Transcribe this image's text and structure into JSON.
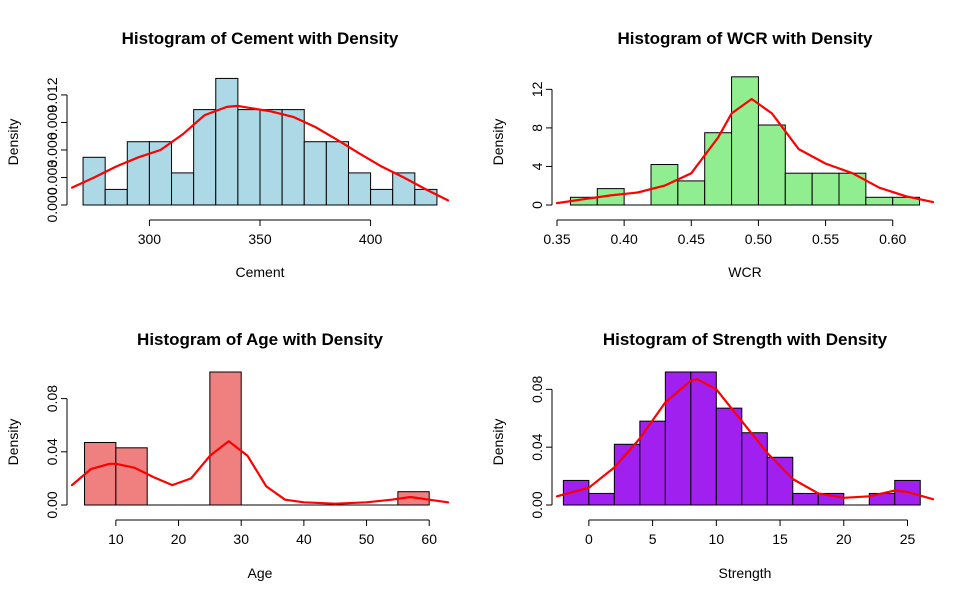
{
  "chart_data": [
    {
      "type": "bar",
      "title": "Histogram of Cement with Density",
      "xlabel": "Cement",
      "ylabel": "Density",
      "bin_edges": [
        270,
        280,
        290,
        300,
        310,
        320,
        330,
        340,
        350,
        360,
        370,
        380,
        390,
        400,
        410,
        420,
        430
      ],
      "values": [
        0.0052,
        0.0017,
        0.0069,
        0.0069,
        0.0035,
        0.0104,
        0.0138,
        0.0104,
        0.0104,
        0.0104,
        0.0069,
        0.0069,
        0.0035,
        0.0017,
        0.0035,
        0.0017
      ],
      "bar_color": "#ADD8E6",
      "density_curve": {
        "color": "#FF0000",
        "x": [
          265,
          275,
          285,
          295,
          305,
          315,
          325,
          335,
          340,
          345,
          355,
          365,
          375,
          385,
          395,
          405,
          415,
          425,
          435
        ],
        "y": [
          0.0019,
          0.003,
          0.0042,
          0.0052,
          0.006,
          0.0077,
          0.0098,
          0.0107,
          0.0108,
          0.0106,
          0.0102,
          0.0096,
          0.0085,
          0.0071,
          0.0056,
          0.0042,
          0.003,
          0.0017,
          0.0005
        ]
      },
      "xticks": [
        300,
        350,
        400
      ],
      "yticks": [
        "0.000",
        "0.003",
        "0.006",
        "0.009",
        "0.012"
      ],
      "xlim": [
        265,
        435
      ],
      "ylim": [
        0,
        0.0145
      ]
    },
    {
      "type": "bar",
      "title": "Histogram of WCR with Density",
      "xlabel": "WCR",
      "ylabel": "Density",
      "bin_edges": [
        0.36,
        0.38,
        0.4,
        0.42,
        0.44,
        0.46,
        0.48,
        0.5,
        0.52,
        0.54,
        0.56,
        0.58,
        0.6,
        0.62
      ],
      "values": [
        0.8,
        1.7,
        0.0,
        4.2,
        2.5,
        7.5,
        13.3,
        8.3,
        3.3,
        3.3,
        3.3,
        0.8,
        0.8
      ],
      "bar_color": "#90EE90",
      "density_curve": {
        "color": "#FF0000",
        "x": [
          0.35,
          0.37,
          0.39,
          0.41,
          0.43,
          0.45,
          0.47,
          0.48,
          0.495,
          0.51,
          0.53,
          0.55,
          0.57,
          0.59,
          0.61,
          0.63
        ],
        "y": [
          0.2,
          0.6,
          1.0,
          1.3,
          2.0,
          3.3,
          7.0,
          9.5,
          11.0,
          9.5,
          5.8,
          4.3,
          3.3,
          1.8,
          0.9,
          0.3
        ]
      },
      "xticks": [
        "0.35",
        "0.40",
        "0.45",
        "0.50",
        "0.55",
        "0.60"
      ],
      "yticks": [
        "0",
        "4",
        "8",
        "12"
      ],
      "xlim": [
        0.35,
        0.63
      ],
      "ylim": [
        0,
        13.8
      ]
    },
    {
      "type": "bar",
      "title": "Histogram of Age with Density",
      "xlabel": "Age",
      "ylabel": "Density",
      "bin_edges": [
        5,
        10,
        15,
        20,
        25,
        30,
        35,
        40,
        45,
        50,
        55,
        60
      ],
      "values": [
        0.047,
        0.043,
        0.0,
        0.0,
        0.1,
        0.0,
        0.0,
        0.0,
        0.0,
        0.0,
        0.01
      ],
      "bar_color": "#F08080",
      "density_curve": {
        "color": "#FF0000",
        "x": [
          3,
          6,
          9,
          10,
          13,
          16,
          19,
          22,
          25,
          28,
          31,
          34,
          37,
          40,
          45,
          50,
          54,
          57,
          60,
          63
        ],
        "y": [
          0.015,
          0.027,
          0.031,
          0.031,
          0.028,
          0.021,
          0.015,
          0.02,
          0.037,
          0.048,
          0.037,
          0.014,
          0.004,
          0.002,
          0.001,
          0.002,
          0.004,
          0.006,
          0.004,
          0.002
        ]
      },
      "xticks": [
        10,
        20,
        30,
        40,
        50,
        60
      ],
      "yticks": [
        "0.00",
        "0.04",
        "0.08"
      ],
      "xlim": [
        3,
        63
      ],
      "ylim": [
        0,
        0.1
      ]
    },
    {
      "type": "bar",
      "title": "Histogram of Strength with Density",
      "xlabel": "Strength",
      "ylabel": "Density",
      "bin_edges": [
        -2,
        0,
        2,
        4,
        6,
        8,
        10,
        12,
        14,
        16,
        18,
        20,
        22,
        24,
        26
      ],
      "values": [
        0.017,
        0.008,
        0.042,
        0.058,
        0.092,
        0.092,
        0.067,
        0.05,
        0.033,
        0.008,
        0.008,
        0.0,
        0.008,
        0.017
      ],
      "bar_color": "#A020F0",
      "density_curve": {
        "color": "#FF0000",
        "x": [
          -2.5,
          0,
          2,
          4,
          6,
          8,
          8.5,
          10,
          12,
          14,
          16,
          18,
          20,
          22,
          24,
          25,
          27
        ],
        "y": [
          0.006,
          0.012,
          0.026,
          0.046,
          0.071,
          0.086,
          0.087,
          0.08,
          0.058,
          0.036,
          0.018,
          0.008,
          0.005,
          0.006,
          0.01,
          0.009,
          0.004
        ]
      },
      "xticks": [
        0,
        5,
        10,
        15,
        20,
        25
      ],
      "yticks": [
        "0.00",
        "0.04",
        "0.08"
      ],
      "xlim": [
        -2.5,
        27
      ],
      "ylim": [
        0,
        0.092
      ]
    }
  ]
}
